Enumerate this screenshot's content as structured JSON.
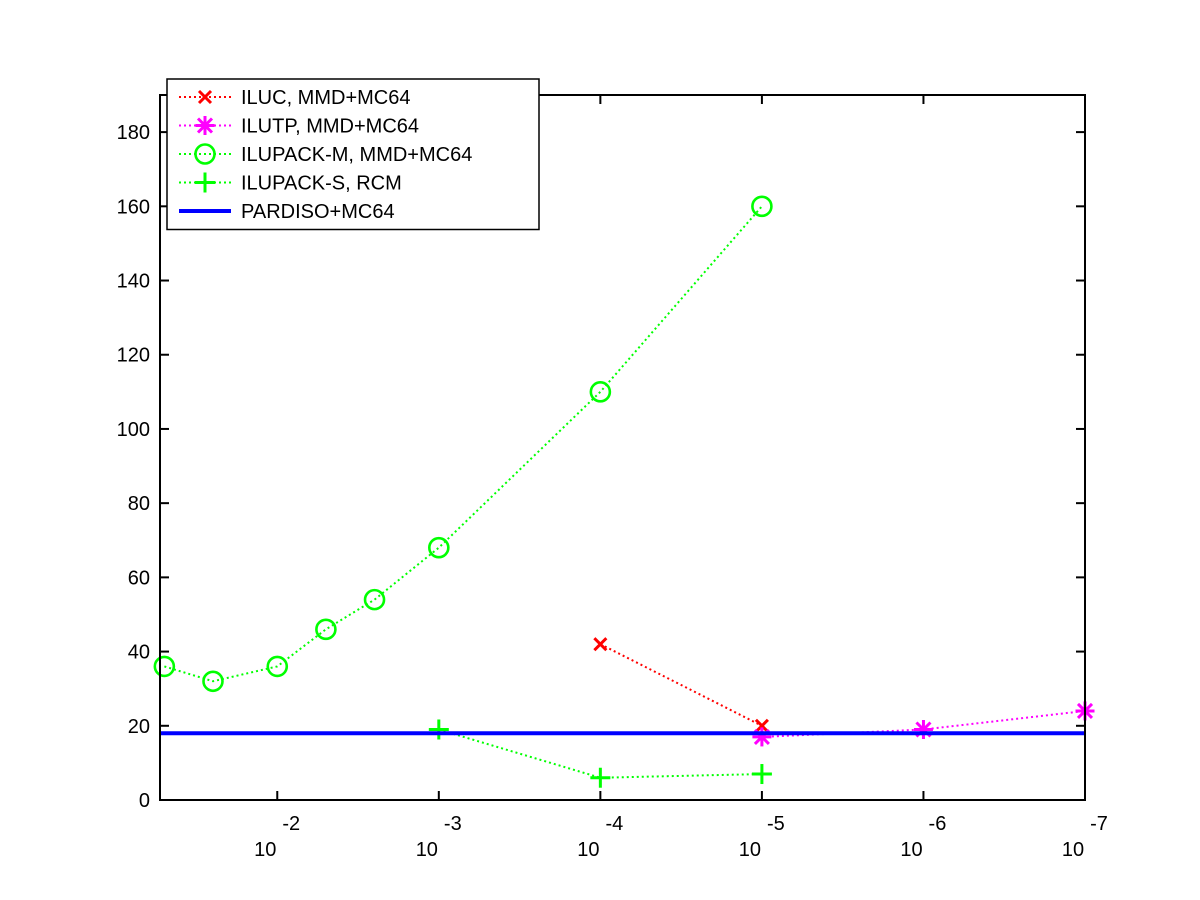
{
  "chart_data": {
    "type": "line",
    "x_scale": "log",
    "x_reversed": true,
    "xlim": [
      0.0532,
      1e-07
    ],
    "ylim": [
      0,
      190
    ],
    "x_ticks": [
      {
        "value": 0.01,
        "base": "10",
        "exp": "-2"
      },
      {
        "value": 0.001,
        "base": "10",
        "exp": "-3"
      },
      {
        "value": 0.0001,
        "base": "10",
        "exp": "-4"
      },
      {
        "value": 1e-05,
        "base": "10",
        "exp": "-5"
      },
      {
        "value": 1e-06,
        "base": "10",
        "exp": "-6"
      },
      {
        "value": 1e-07,
        "base": "10",
        "exp": "-7"
      }
    ],
    "y_ticks": [
      0,
      20,
      40,
      60,
      80,
      100,
      120,
      140,
      160,
      180
    ],
    "grid": false,
    "legend_position": "top-left",
    "series": [
      {
        "name": "ILUC, MMD+MC64",
        "color": "#ff0000",
        "marker": "x",
        "line": "dotted",
        "x": [
          0.0001,
          1e-05
        ],
        "y": [
          42,
          20
        ]
      },
      {
        "name": "ILUTP, MMD+MC64",
        "color": "#ff00ff",
        "marker": "asterisk",
        "line": "dotted",
        "x": [
          1e-05,
          1e-06,
          1e-07
        ],
        "y": [
          17,
          19,
          24
        ]
      },
      {
        "name": "ILUPACK-M, MMD+MC64",
        "color": "#00ff00",
        "marker": "circle",
        "line": "dotted",
        "x": [
          0.05,
          0.025,
          0.01,
          0.005,
          0.0025,
          0.001,
          0.0001,
          1e-05
        ],
        "y": [
          36,
          32,
          36,
          46,
          54,
          68,
          110,
          160
        ]
      },
      {
        "name": "ILUPACK-S, RCM",
        "color": "#00ff00",
        "marker": "plus",
        "line": "dotted",
        "x": [
          0.001,
          0.0001,
          1e-05
        ],
        "y": [
          19,
          6,
          7
        ]
      },
      {
        "name": "PARDISO+MC64",
        "color": "#0000ff",
        "marker": "none",
        "line": "solid",
        "x": [
          0.0532,
          1e-07
        ],
        "y": [
          18,
          18
        ]
      }
    ]
  }
}
